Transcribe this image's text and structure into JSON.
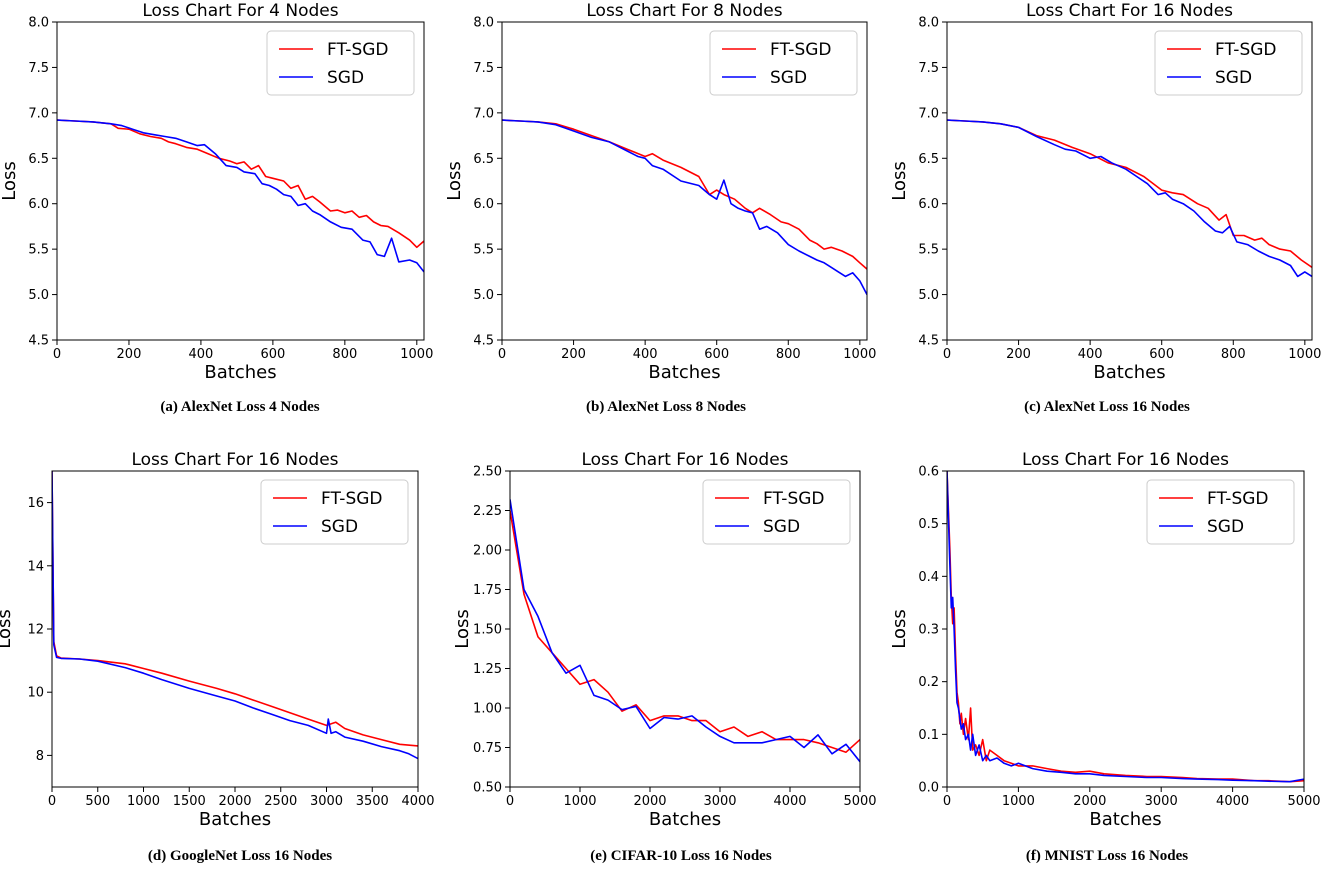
{
  "chart_data": [
    {
      "type": "line",
      "title": "Loss Chart For 4 Nodes",
      "caption": "(a) AlexNet Loss 4 Nodes",
      "xlabel": "Batches",
      "ylabel": "Loss",
      "xlim": [
        0,
        1020
      ],
      "ylim": [
        4.5,
        8.0
      ],
      "xticks": [
        0,
        200,
        400,
        600,
        800,
        1000
      ],
      "yticks": [
        4.5,
        5.0,
        5.5,
        6.0,
        6.5,
        7.0,
        7.5,
        8.0
      ],
      "ytick_decimals": 1,
      "legend": "top-right",
      "grid": false,
      "series": [
        {
          "name": "FT-SGD",
          "color": "#ff0000",
          "x": [
            0,
            50,
            100,
            150,
            170,
            200,
            230,
            260,
            290,
            310,
            330,
            360,
            390,
            420,
            450,
            480,
            500,
            520,
            540,
            560,
            580,
            600,
            630,
            650,
            670,
            690,
            710,
            730,
            760,
            780,
            800,
            820,
            840,
            860,
            880,
            900,
            920,
            950,
            980,
            1000,
            1020
          ],
          "y": [
            6.92,
            6.91,
            6.9,
            6.88,
            6.83,
            6.82,
            6.77,
            6.74,
            6.72,
            6.68,
            6.66,
            6.62,
            6.6,
            6.55,
            6.5,
            6.47,
            6.44,
            6.46,
            6.38,
            6.42,
            6.3,
            6.28,
            6.25,
            6.17,
            6.2,
            6.05,
            6.08,
            6.02,
            5.92,
            5.93,
            5.9,
            5.92,
            5.85,
            5.87,
            5.8,
            5.76,
            5.75,
            5.68,
            5.6,
            5.52,
            5.59
          ]
        },
        {
          "name": "SGD",
          "color": "#0000ff",
          "x": [
            0,
            50,
            100,
            150,
            180,
            210,
            240,
            270,
            300,
            330,
            360,
            390,
            410,
            440,
            470,
            500,
            520,
            550,
            570,
            590,
            610,
            630,
            650,
            670,
            690,
            710,
            730,
            760,
            790,
            820,
            850,
            870,
            890,
            910,
            930,
            950,
            980,
            1000,
            1020
          ],
          "y": [
            6.92,
            6.91,
            6.9,
            6.88,
            6.86,
            6.82,
            6.78,
            6.76,
            6.74,
            6.72,
            6.68,
            6.64,
            6.65,
            6.55,
            6.42,
            6.4,
            6.35,
            6.33,
            6.22,
            6.2,
            6.16,
            6.1,
            6.08,
            5.98,
            6.0,
            5.92,
            5.88,
            5.8,
            5.74,
            5.72,
            5.6,
            5.58,
            5.44,
            5.42,
            5.62,
            5.36,
            5.38,
            5.35,
            5.25
          ]
        }
      ]
    },
    {
      "type": "line",
      "title": "Loss Chart For 8 Nodes",
      "caption": "(b) AlexNet Loss 8 Nodes",
      "xlabel": "Batches",
      "ylabel": "Loss",
      "xlim": [
        0,
        1020
      ],
      "ylim": [
        4.5,
        8.0
      ],
      "xticks": [
        0,
        200,
        400,
        600,
        800,
        1000
      ],
      "yticks": [
        4.5,
        5.0,
        5.5,
        6.0,
        6.5,
        7.0,
        7.5,
        8.0
      ],
      "ytick_decimals": 1,
      "legend": "top-right",
      "grid": false,
      "series": [
        {
          "name": "FT-SGD",
          "color": "#ff0000",
          "x": [
            0,
            50,
            100,
            150,
            200,
            250,
            300,
            350,
            400,
            420,
            450,
            500,
            550,
            580,
            600,
            620,
            650,
            680,
            700,
            720,
            750,
            780,
            800,
            830,
            860,
            880,
            900,
            920,
            950,
            980,
            1000,
            1020
          ],
          "y": [
            6.92,
            6.91,
            6.9,
            6.88,
            6.82,
            6.75,
            6.68,
            6.6,
            6.52,
            6.55,
            6.48,
            6.4,
            6.3,
            6.1,
            6.15,
            6.1,
            6.05,
            5.95,
            5.9,
            5.95,
            5.88,
            5.8,
            5.78,
            5.72,
            5.6,
            5.56,
            5.5,
            5.52,
            5.48,
            5.42,
            5.35,
            5.28
          ]
        },
        {
          "name": "SGD",
          "color": "#0000ff",
          "x": [
            0,
            50,
            100,
            150,
            200,
            250,
            300,
            350,
            380,
            400,
            420,
            450,
            500,
            550,
            580,
            600,
            620,
            640,
            660,
            680,
            700,
            720,
            740,
            770,
            800,
            830,
            860,
            880,
            900,
            920,
            940,
            960,
            980,
            1000,
            1020
          ],
          "y": [
            6.92,
            6.91,
            6.9,
            6.87,
            6.8,
            6.73,
            6.68,
            6.58,
            6.52,
            6.5,
            6.42,
            6.38,
            6.25,
            6.2,
            6.1,
            6.05,
            6.26,
            6.0,
            5.95,
            5.92,
            5.9,
            5.72,
            5.75,
            5.68,
            5.55,
            5.48,
            5.42,
            5.38,
            5.35,
            5.3,
            5.25,
            5.2,
            5.24,
            5.15,
            5.0
          ]
        }
      ]
    },
    {
      "type": "line",
      "title": "Loss Chart For 16 Nodes",
      "caption": "(c) AlexNet Loss 16 Nodes",
      "xlabel": "Batches",
      "ylabel": "Loss",
      "xlim": [
        0,
        1020
      ],
      "ylim": [
        4.5,
        8.0
      ],
      "xticks": [
        0,
        200,
        400,
        600,
        800,
        1000
      ],
      "yticks": [
        4.5,
        5.0,
        5.5,
        6.0,
        6.5,
        7.0,
        7.5,
        8.0
      ],
      "ytick_decimals": 1,
      "legend": "top-right",
      "grid": false,
      "series": [
        {
          "name": "FT-SGD",
          "color": "#ff0000",
          "x": [
            0,
            50,
            100,
            150,
            200,
            250,
            300,
            350,
            400,
            450,
            500,
            550,
            600,
            630,
            660,
            700,
            730,
            760,
            780,
            800,
            830,
            860,
            880,
            900,
            930,
            960,
            990,
            1020
          ],
          "y": [
            6.92,
            6.91,
            6.9,
            6.88,
            6.84,
            6.75,
            6.7,
            6.62,
            6.55,
            6.45,
            6.4,
            6.3,
            6.15,
            6.12,
            6.1,
            6.0,
            5.95,
            5.82,
            5.88,
            5.65,
            5.65,
            5.6,
            5.62,
            5.55,
            5.5,
            5.48,
            5.38,
            5.3
          ]
        },
        {
          "name": "SGD",
          "color": "#0000ff",
          "x": [
            0,
            50,
            100,
            150,
            200,
            250,
            300,
            330,
            360,
            400,
            430,
            460,
            500,
            530,
            560,
            590,
            610,
            630,
            660,
            690,
            720,
            750,
            770,
            790,
            810,
            840,
            870,
            900,
            930,
            960,
            980,
            1000,
            1020
          ],
          "y": [
            6.92,
            6.91,
            6.9,
            6.88,
            6.84,
            6.74,
            6.65,
            6.6,
            6.58,
            6.5,
            6.52,
            6.45,
            6.38,
            6.3,
            6.22,
            6.1,
            6.12,
            6.05,
            6.0,
            5.92,
            5.8,
            5.7,
            5.68,
            5.75,
            5.58,
            5.55,
            5.48,
            5.42,
            5.38,
            5.32,
            5.2,
            5.25,
            5.2
          ]
        }
      ]
    },
    {
      "type": "line",
      "title": "Loss Chart For 16 Nodes",
      "caption": "(d) GoogleNet Loss 16 Nodes",
      "xlabel": "Batches",
      "ylabel": "Loss",
      "xlim": [
        0,
        4000
      ],
      "ylim": [
        7.0,
        17.0
      ],
      "xticks": [
        0,
        500,
        1000,
        1500,
        2000,
        2500,
        3000,
        3500,
        4000
      ],
      "yticks": [
        8,
        10,
        12,
        14,
        16
      ],
      "ytick_decimals": 0,
      "legend": "top-right",
      "grid": false,
      "series": [
        {
          "name": "FT-SGD",
          "color": "#ff0000",
          "x": [
            0,
            20,
            50,
            100,
            300,
            500,
            800,
            1000,
            1200,
            1500,
            1800,
            2000,
            2200,
            2400,
            2600,
            2800,
            3000,
            3100,
            3200,
            3400,
            3600,
            3800,
            4000
          ],
          "y": [
            17.0,
            11.6,
            11.15,
            11.08,
            11.05,
            11.0,
            10.9,
            10.75,
            10.6,
            10.35,
            10.12,
            9.95,
            9.75,
            9.55,
            9.35,
            9.15,
            8.95,
            9.05,
            8.85,
            8.65,
            8.5,
            8.35,
            8.3
          ]
        },
        {
          "name": "SGD",
          "color": "#0000ff",
          "x": [
            0,
            20,
            50,
            100,
            300,
            500,
            800,
            1000,
            1200,
            1500,
            1800,
            2000,
            2200,
            2400,
            2600,
            2800,
            3000,
            3020,
            3050,
            3100,
            3200,
            3400,
            3600,
            3800,
            3900,
            4000
          ],
          "y": [
            17.0,
            11.5,
            11.1,
            11.07,
            11.05,
            10.98,
            10.78,
            10.6,
            10.4,
            10.12,
            9.88,
            9.72,
            9.5,
            9.3,
            9.1,
            8.95,
            8.7,
            9.15,
            8.7,
            8.75,
            8.58,
            8.45,
            8.28,
            8.15,
            8.05,
            7.9
          ]
        }
      ]
    },
    {
      "type": "line",
      "title": "Loss Chart For 16 Nodes",
      "caption": "(e) CIFAR-10 Loss 16 Nodes",
      "xlabel": "Batches",
      "ylabel": "Loss",
      "xlim": [
        0,
        5000
      ],
      "ylim": [
        0.5,
        2.5
      ],
      "xticks": [
        0,
        1000,
        2000,
        3000,
        4000,
        5000
      ],
      "yticks": [
        0.5,
        0.75,
        1.0,
        1.25,
        1.5,
        1.75,
        2.0,
        2.25,
        2.5
      ],
      "ytick_decimals": 2,
      "legend": "top-right",
      "grid": false,
      "series": [
        {
          "name": "FT-SGD",
          "color": "#ff0000",
          "x": [
            0,
            200,
            400,
            600,
            800,
            1000,
            1200,
            1400,
            1600,
            1800,
            2000,
            2200,
            2400,
            2600,
            2800,
            3000,
            3200,
            3400,
            3600,
            3800,
            4000,
            4200,
            4400,
            4600,
            4800,
            5000
          ],
          "y": [
            2.25,
            1.72,
            1.45,
            1.35,
            1.25,
            1.15,
            1.18,
            1.1,
            0.98,
            1.02,
            0.92,
            0.95,
            0.95,
            0.92,
            0.92,
            0.85,
            0.88,
            0.82,
            0.85,
            0.8,
            0.8,
            0.8,
            0.78,
            0.75,
            0.72,
            0.8
          ]
        },
        {
          "name": "SGD",
          "color": "#0000ff",
          "x": [
            0,
            200,
            400,
            600,
            800,
            1000,
            1200,
            1400,
            1600,
            1800,
            2000,
            2200,
            2400,
            2600,
            2800,
            3000,
            3200,
            3400,
            3600,
            3800,
            4000,
            4200,
            4400,
            4600,
            4800,
            5000
          ],
          "y": [
            2.32,
            1.75,
            1.58,
            1.35,
            1.22,
            1.27,
            1.08,
            1.05,
            0.99,
            1.01,
            0.87,
            0.94,
            0.93,
            0.95,
            0.88,
            0.82,
            0.78,
            0.78,
            0.78,
            0.8,
            0.82,
            0.75,
            0.83,
            0.71,
            0.77,
            0.66
          ]
        }
      ]
    },
    {
      "type": "line",
      "title": "Loss Chart For 16 Nodes",
      "caption": "(f) MNIST Loss 16 Nodes",
      "xlabel": "Batches",
      "ylabel": "Loss",
      "xlim": [
        0,
        5000
      ],
      "ylim": [
        0.0,
        0.6
      ],
      "xticks": [
        0,
        1000,
        2000,
        3000,
        4000,
        5000
      ],
      "yticks": [
        0.0,
        0.1,
        0.2,
        0.3,
        0.4,
        0.5,
        0.6
      ],
      "ytick_decimals": 1,
      "legend": "top-right",
      "grid": false,
      "series": [
        {
          "name": "FT-SGD",
          "color": "#ff0000",
          "x": [
            0,
            40,
            60,
            80,
            100,
            120,
            140,
            160,
            180,
            200,
            230,
            260,
            300,
            330,
            360,
            400,
            450,
            500,
            550,
            600,
            700,
            800,
            900,
            1000,
            1200,
            1400,
            1600,
            1800,
            2000,
            2200,
            2500,
            2800,
            3000,
            3300,
            3500,
            3800,
            4000,
            4300,
            4500,
            4800,
            5000
          ],
          "y": [
            0.6,
            0.45,
            0.36,
            0.31,
            0.34,
            0.25,
            0.18,
            0.16,
            0.12,
            0.14,
            0.1,
            0.13,
            0.09,
            0.15,
            0.07,
            0.08,
            0.06,
            0.09,
            0.05,
            0.07,
            0.06,
            0.05,
            0.045,
            0.04,
            0.04,
            0.035,
            0.03,
            0.028,
            0.03,
            0.025,
            0.022,
            0.02,
            0.02,
            0.018,
            0.016,
            0.015,
            0.015,
            0.012,
            0.012,
            0.01,
            0.012
          ]
        },
        {
          "name": "SGD",
          "color": "#0000ff",
          "x": [
            0,
            40,
            60,
            80,
            100,
            120,
            140,
            160,
            180,
            200,
            230,
            260,
            300,
            330,
            360,
            400,
            450,
            500,
            550,
            600,
            700,
            800,
            900,
            1000,
            1200,
            1400,
            1600,
            1800,
            2000,
            2200,
            2500,
            2800,
            3000,
            3300,
            3500,
            3800,
            4000,
            4300,
            4500,
            4800,
            5000
          ],
          "y": [
            0.6,
            0.42,
            0.34,
            0.36,
            0.3,
            0.22,
            0.16,
            0.15,
            0.13,
            0.11,
            0.12,
            0.09,
            0.1,
            0.07,
            0.1,
            0.06,
            0.08,
            0.05,
            0.06,
            0.05,
            0.055,
            0.045,
            0.04,
            0.045,
            0.035,
            0.03,
            0.028,
            0.025,
            0.025,
            0.022,
            0.02,
            0.018,
            0.018,
            0.016,
            0.015,
            0.014,
            0.013,
            0.012,
            0.011,
            0.01,
            0.015
          ]
        }
      ]
    }
  ]
}
